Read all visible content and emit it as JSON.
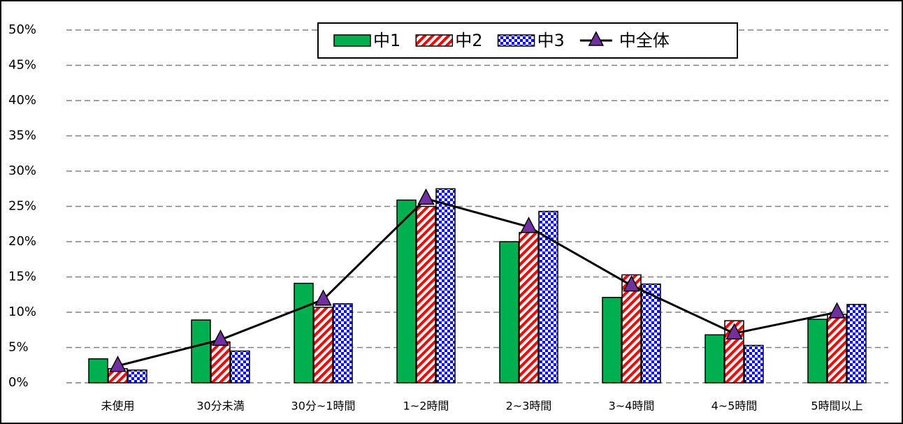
{
  "chart_data": {
    "type": "bar",
    "categories": [
      "未使用",
      "30分未満",
      "30分~1時間",
      "1~2時間",
      "2~3時間",
      "3~4時間",
      "4~5時間",
      "5時間以上"
    ],
    "series": [
      {
        "name": "中1",
        "color": "#00b050",
        "pattern": "solid",
        "values": [
          3.4,
          8.9,
          14.1,
          25.9,
          20.0,
          12.1,
          6.8,
          9.0
        ]
      },
      {
        "name": "中2",
        "color": "#ff0000",
        "pattern": "diagonal",
        "values": [
          2.0,
          5.8,
          10.7,
          25.0,
          21.3,
          15.3,
          8.8,
          9.7
        ]
      },
      {
        "name": "中3",
        "color": "#0000ff",
        "pattern": "checker",
        "values": [
          1.8,
          4.5,
          11.2,
          27.5,
          24.3,
          14.0,
          5.3,
          11.1
        ]
      },
      {
        "name": "中全体",
        "type": "line",
        "color": "#000000",
        "marker_color": "#7030a0",
        "values": [
          2.4,
          6.1,
          11.8,
          26.1,
          22.1,
          13.8,
          7.0,
          10.0
        ]
      }
    ],
    "ylim": [
      0,
      50
    ],
    "yticks": [
      {
        "value": 0,
        "label": "0%"
      },
      {
        "value": 5,
        "label": "5%"
      },
      {
        "value": 10,
        "label": "10%"
      },
      {
        "value": 15,
        "label": "15%"
      },
      {
        "value": 20,
        "label": "20%"
      },
      {
        "value": 25,
        "label": "25%"
      },
      {
        "value": 30,
        "label": "30%"
      },
      {
        "value": 35,
        "label": "35%"
      },
      {
        "value": 40,
        "label": "40%"
      },
      {
        "value": 45,
        "label": "45%"
      },
      {
        "value": 50,
        "label": "50%"
      }
    ],
    "grid": true,
    "legend": "top"
  }
}
